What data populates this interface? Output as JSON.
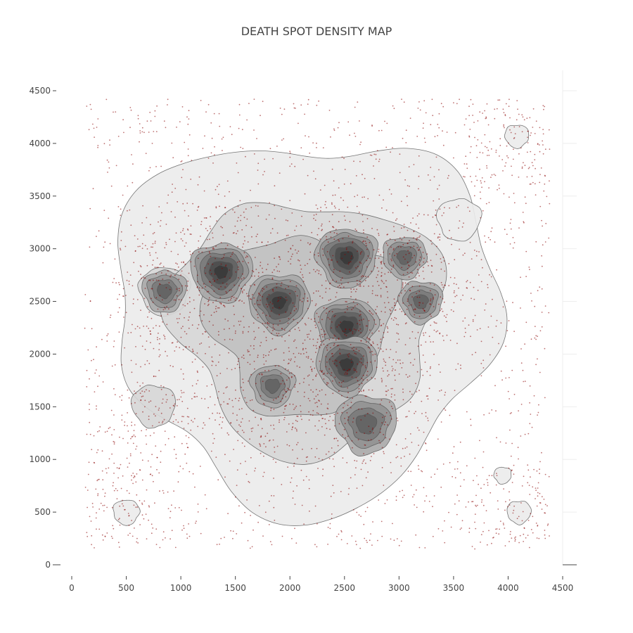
{
  "chart_data": {
    "type": "scatter",
    "title": "DEATH SPOT DENSITY MAP",
    "xlabel": "",
    "ylabel": "",
    "xlim": [
      -50,
      4600
    ],
    "ylim": [
      -50,
      4650
    ],
    "x_ticks": [
      0,
      500,
      1000,
      1500,
      2000,
      2500,
      3000,
      3500,
      4000,
      4500
    ],
    "y_ticks": [
      0,
      500,
      1000,
      1500,
      2000,
      2500,
      3000,
      3500,
      4000,
      4500
    ],
    "x_tick_labels": [
      "0",
      "500",
      "1000",
      "1500",
      "2000",
      "2500",
      "3000",
      "3500",
      "4000",
      "4500"
    ],
    "y_tick_labels": [
      "0",
      "500",
      "1000",
      "1500",
      "2000",
      "2500",
      "3000",
      "3500",
      "4000",
      "4500"
    ],
    "grid": true,
    "legend": "none",
    "series": [
      {
        "type": "scatter",
        "marker_color": "#8b0000",
        "approx_point_count": 12000,
        "x_range": [
          120,
          4380
        ],
        "y_range": [
          150,
          4420
        ],
        "dense_clusters": [
          {
            "x": 1370,
            "y": 2780
          },
          {
            "x": 1900,
            "y": 2490
          },
          {
            "x": 2520,
            "y": 2920
          },
          {
            "x": 2520,
            "y": 2260
          },
          {
            "x": 2520,
            "y": 1900
          },
          {
            "x": 2700,
            "y": 1340
          },
          {
            "x": 1840,
            "y": 1700
          },
          {
            "x": 3050,
            "y": 2920
          },
          {
            "x": 3200,
            "y": 2500
          },
          {
            "x": 850,
            "y": 2600
          },
          {
            "x": 750,
            "y": 1510
          },
          {
            "x": 500,
            "y": 500
          },
          {
            "x": 4100,
            "y": 500
          },
          {
            "x": 4080,
            "y": 4070
          }
        ]
      },
      {
        "type": "density_contour",
        "line_color": "#555555",
        "fill_colormap": [
          "#ebebeb",
          "#d6d6d6",
          "#c0c0c0",
          "#a9a9a9",
          "#929292",
          "#7a7a7a",
          "#636363",
          "#4c4c4c",
          "#383838"
        ]
      }
    ]
  }
}
